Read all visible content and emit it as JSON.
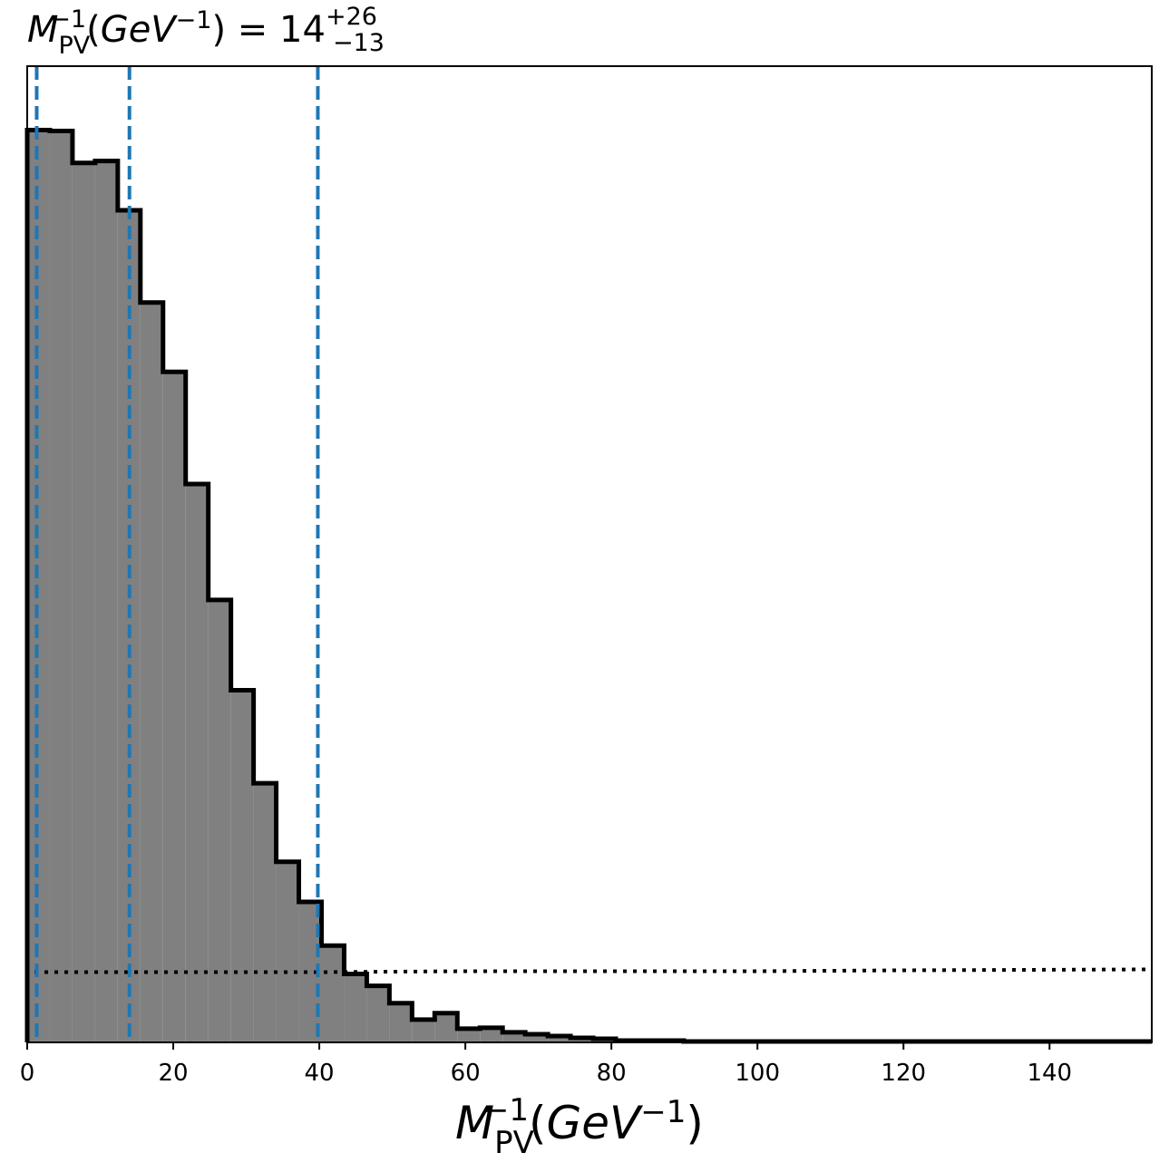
{
  "chart_data": {
    "type": "histogram",
    "title": {
      "symbol": "M",
      "subscript": "PV",
      "superscript": "−1",
      "open_paren": "(",
      "unit_base": "GeV",
      "unit_exp": "−1",
      "close_paren": ")",
      "equals": " = ",
      "value": "14",
      "err_plus": "+26",
      "err_minus": "−13"
    },
    "xlabel": {
      "symbol": "M",
      "subscript": "PV",
      "superscript": "−1",
      "open_paren": "(",
      "unit_base": "GeV",
      "unit_exp": "−1",
      "close_paren": ")"
    },
    "xlim": [
      0,
      154
    ],
    "ylim": [
      0,
      1.07
    ],
    "xticks": [
      0,
      20,
      40,
      60,
      80,
      100,
      120,
      140
    ],
    "xtick_labels": [
      "0",
      "20",
      "40",
      "60",
      "80",
      "100",
      "120",
      "140"
    ],
    "yticks_shown": false,
    "bins": {
      "start": 0,
      "width": 3.1,
      "counts": [
        1.0,
        0.999,
        0.964,
        0.966,
        0.912,
        0.811,
        0.735,
        0.612,
        0.485,
        0.386,
        0.284,
        0.198,
        0.154,
        0.106,
        0.075,
        0.062,
        0.043,
        0.025,
        0.032,
        0.015,
        0.016,
        0.011,
        0.009,
        0.007,
        0.005,
        0.004,
        0.002,
        0.002,
        0.002,
        0.001,
        0.001,
        0.001,
        0.001,
        0.001,
        0.001,
        0.001,
        0.001,
        0.001,
        0.001,
        0.001,
        0.001,
        0.001,
        0.001,
        0.001,
        0.001,
        0.001,
        0.001,
        0.001,
        0.001,
        0.001
      ]
    },
    "fill_color": "#808080",
    "edge_color": "#000000",
    "quantile_lines": {
      "values": [
        1.3,
        14,
        39.8
      ],
      "color": "#1f77b4",
      "style": "dashed"
    },
    "prior_line": {
      "x": [
        1,
        20,
        40,
        60,
        80,
        100,
        120,
        154
      ],
      "y": [
        0.077,
        0.077,
        0.077,
        0.078,
        0.078,
        0.078,
        0.079,
        0.08
      ],
      "color": "#000000",
      "style": "dotted"
    }
  }
}
